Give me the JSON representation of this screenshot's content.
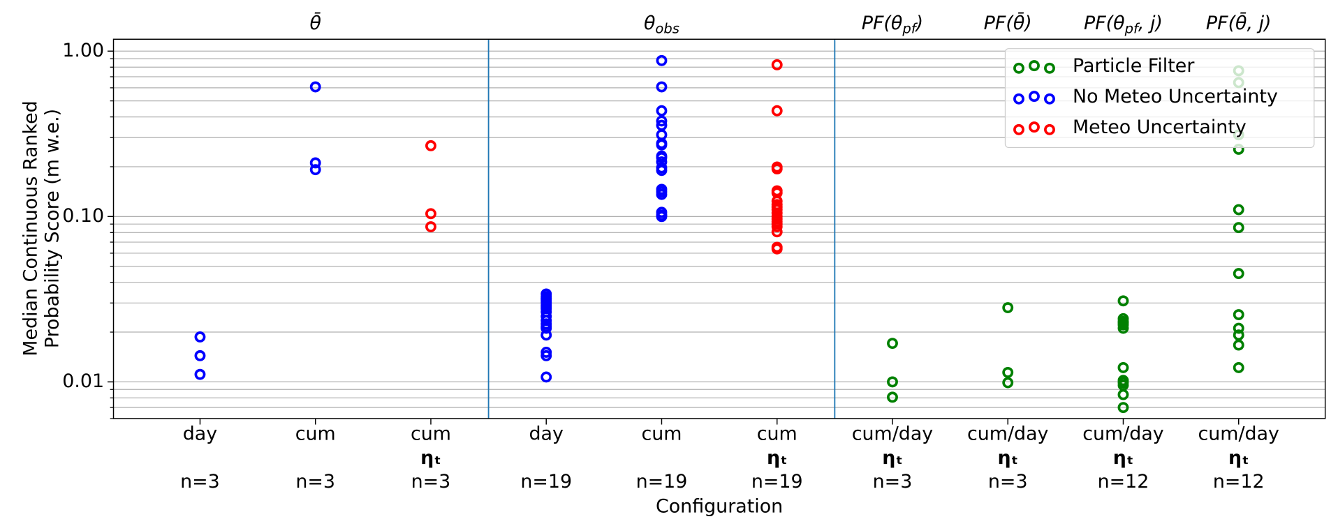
{
  "chart_data": {
    "type": "scatter",
    "x_label": "Configuration",
    "y_label": [
      "Median Continuous Ranked",
      "Probability Score (m w.e.)"
    ],
    "log_y": true,
    "grid": true,
    "legend": "upper right",
    "ylim": [
      0.006,
      1.18
    ],
    "yticks": [
      {
        "value": 0.01,
        "label": "0.01"
      },
      {
        "value": 0.1,
        "label": "0.10"
      },
      {
        "value": 1,
        "label": "1.00"
      }
    ],
    "minor_yticks": [
      0.006,
      0.007,
      0.008,
      0.009,
      0.02,
      0.03,
      0.04,
      0.05,
      0.06,
      0.07,
      0.08,
      0.09,
      0.2,
      0.3,
      0.4,
      0.5,
      0.6,
      0.7,
      0.8,
      0.9
    ],
    "groups": [
      {
        "label": "θ̄"
      },
      {
        "label": "θ",
        "sub": "obs"
      },
      {
        "label": "PF(θ",
        "sub": "pf",
        "tail": ")"
      },
      {
        "label": "PF(θ̄)"
      },
      {
        "label": "PF(θ",
        "sub": "pf",
        "tail": ", j)"
      },
      {
        "label": "PF(θ̄, j)"
      }
    ],
    "categories": [
      "day",
      "cum",
      "cum",
      "day",
      "cum",
      "cum",
      "cum/day",
      "cum/day",
      "cum/day",
      "cum/day"
    ],
    "category_params": [
      null,
      null,
      "ηₜ",
      null,
      null,
      "ηₜ",
      "ηₜ",
      "ηₜ",
      "ηₜ",
      "ηₜ"
    ],
    "category_counts": [
      "n=3",
      "n=3",
      "n=3",
      "n=19",
      "n=19",
      "n=19",
      "n=3",
      "n=3",
      "n=12",
      "n=12"
    ],
    "series": [
      {
        "name": "Particle Filter",
        "color": "#008000",
        "values": [
          null,
          null,
          null,
          null,
          null,
          null,
          [
            0.0171,
            0.01,
            0.00808
          ],
          [
            0.0281,
            0.0114,
            0.00989
          ],
          [
            0.0309,
            0.0241,
            0.0232,
            0.0227,
            0.0221,
            0.0211,
            0.0122,
            0.0102,
            0.00989,
            0.00954,
            0.00838,
            0.007
          ],
          [
            0.761,
            0.645,
            0.312,
            0.255,
            0.11,
            0.0857,
            0.0452,
            0.0255,
            0.0211,
            0.0192,
            0.0167,
            0.0122
          ]
        ]
      },
      {
        "name": "No Meteo Uncertainty",
        "color": "#0000ff",
        "values": [
          [
            0.0187,
            0.0144,
            0.0111
          ],
          [
            0.608,
            0.211,
            0.192
          ],
          null,
          [
            0.034,
            0.0328,
            0.032,
            0.0316,
            0.0309,
            0.0301,
            0.0291,
            0.0284,
            0.0277,
            0.0265,
            0.0249,
            0.0235,
            0.0224,
            0.0216,
            0.0211,
            0.0192,
            0.0151,
            0.0144,
            0.0107
          ],
          [
            0.877,
            0.608,
            0.436,
            0.378,
            0.356,
            0.312,
            0.277,
            0.271,
            0.232,
            0.227,
            0.214,
            0.197,
            0.19,
            0.146,
            0.141,
            0.136,
            0.106,
            0.102,
            0.1
          ],
          null,
          null,
          null,
          null,
          null
        ]
      },
      {
        "name": "Meteo Uncertainty",
        "color": "#ff0000",
        "values": [
          null,
          null,
          [
            0.268,
            0.104,
            0.0867
          ],
          null,
          null,
          [
            0.827,
            0.436,
            0.199,
            0.194,
            0.143,
            0.139,
            0.124,
            0.118,
            0.114,
            0.11,
            0.105,
            0.1,
            0.0965,
            0.0931,
            0.0899,
            0.0867,
            0.0808,
            0.0652,
            0.0637
          ],
          null,
          null,
          null,
          null
        ]
      }
    ]
  }
}
